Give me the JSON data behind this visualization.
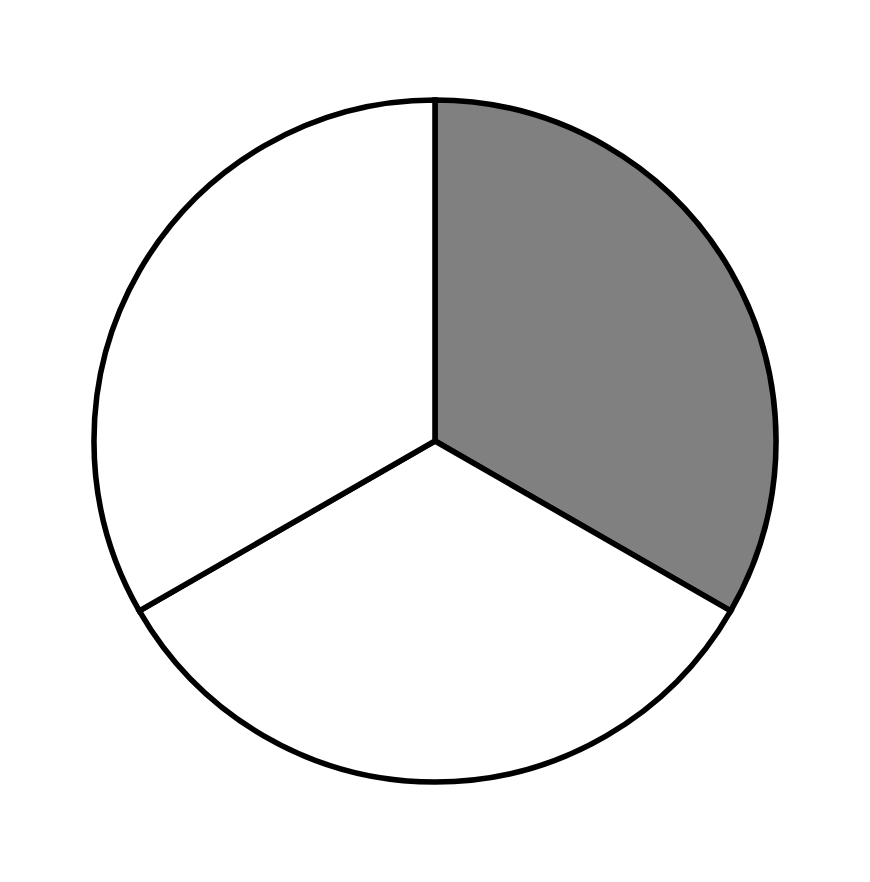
{
  "chart_data": {
    "type": "pie",
    "categories": [
      null,
      null,
      null
    ],
    "values": [
      33.3,
      33.4,
      33.3
    ],
    "colors": [
      "#808080",
      "#ffffff",
      "#ffffff"
    ]
  }
}
